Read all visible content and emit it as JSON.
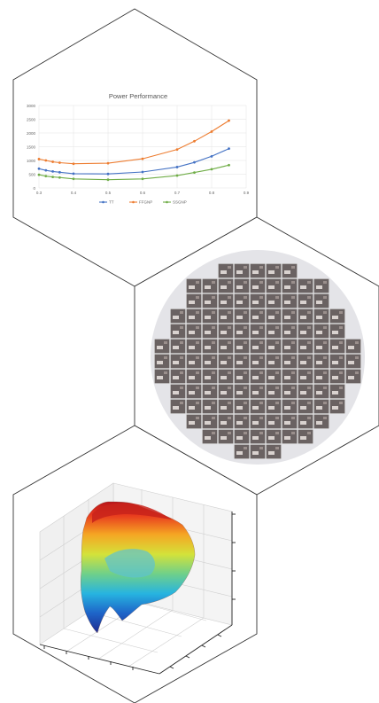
{
  "panels": [
    {
      "id": "power-performance-chart"
    },
    {
      "id": "wafer-map"
    },
    {
      "id": "surface-plot-3d"
    }
  ],
  "chart_data": {
    "type": "line",
    "title": "Power Performance",
    "xlabel": "",
    "ylabel": "",
    "xlim": [
      0.3,
      0.9
    ],
    "ylim": [
      0,
      3000
    ],
    "x_ticks": [
      "0.3",
      "0.4",
      "0.5",
      "0.6",
      "0.7",
      "0.8",
      "0.9"
    ],
    "y_ticks": [
      "0",
      "500",
      "1000",
      "1500",
      "2000",
      "2500",
      "3000"
    ],
    "grid": true,
    "legend_position": "bottom",
    "series": [
      {
        "name": "TT",
        "color": "#4472c4",
        "x": [
          0.3,
          0.32,
          0.34,
          0.36,
          0.4,
          0.5,
          0.6,
          0.7,
          0.75,
          0.8,
          0.85
        ],
        "y": [
          700,
          640,
          600,
          570,
          520,
          510,
          580,
          760,
          930,
          1150,
          1430
        ]
      },
      {
        "name": "FFGNP",
        "color": "#ed7d31",
        "x": [
          0.3,
          0.32,
          0.34,
          0.36,
          0.4,
          0.5,
          0.6,
          0.7,
          0.75,
          0.8,
          0.85
        ],
        "y": [
          1050,
          1000,
          950,
          920,
          880,
          900,
          1060,
          1400,
          1700,
          2050,
          2450
        ]
      },
      {
        "name": "SSGNP",
        "color": "#70ad47",
        "x": [
          0.3,
          0.32,
          0.34,
          0.36,
          0.4,
          0.5,
          0.6,
          0.7,
          0.75,
          0.8,
          0.85
        ],
        "y": [
          480,
          430,
          400,
          380,
          330,
          300,
          330,
          450,
          560,
          680,
          830
        ]
      }
    ]
  },
  "colors": {
    "outline": "#333333",
    "wafer_disc": "#e4e4e8",
    "die": "#6a6262"
  }
}
